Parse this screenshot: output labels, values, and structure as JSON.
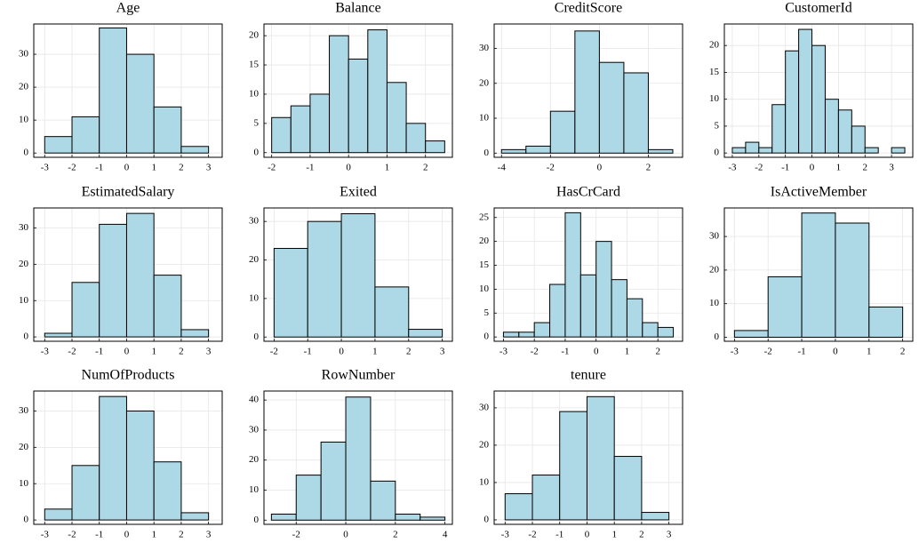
{
  "chart_data": [
    {
      "type": "histogram",
      "title": "Age",
      "bins": [
        -3,
        -2,
        -1,
        0,
        1,
        2,
        3
      ],
      "values": [
        5,
        11,
        38,
        30,
        14,
        2
      ],
      "color": "#add8e6",
      "xlim": [
        -3.4,
        3.5
      ],
      "xticks": [
        -3,
        -2,
        -1,
        0,
        1,
        2,
        3
      ],
      "ylim": [
        -1.3,
        39.2
      ],
      "yticks": [
        0,
        10,
        20,
        30
      ],
      "grid": true
    },
    {
      "type": "histogram",
      "title": "Balance",
      "bins": [
        -2,
        -1.5,
        -1,
        -0.5,
        0,
        0.5,
        1,
        1.5,
        2,
        2.5
      ],
      "values": [
        6,
        8,
        10,
        20,
        16,
        21,
        12,
        5,
        2
      ],
      "color": "#add8e6",
      "xlim": [
        -2.2,
        2.7
      ],
      "xticks": [
        -2,
        -1,
        0,
        1,
        2
      ],
      "ylim": [
        -0.8,
        22
      ],
      "yticks": [
        0,
        5,
        10,
        15,
        20
      ],
      "grid": true
    },
    {
      "type": "histogram",
      "title": "CreditScore",
      "bins": [
        -4,
        -3,
        -2,
        -1,
        0,
        1,
        2,
        3
      ],
      "values": [
        1,
        2,
        12,
        35,
        26,
        23,
        1
      ],
      "color": "#add8e6",
      "xlim": [
        -4.3,
        3.4
      ],
      "xticks": [
        -4,
        -2,
        0,
        2
      ],
      "ylim": [
        -1.2,
        37
      ],
      "yticks": [
        0,
        10,
        20,
        30
      ],
      "grid": true
    },
    {
      "type": "histogram",
      "title": "CustomerId",
      "bins": [
        -3,
        -2.5,
        -2,
        -1.5,
        -1,
        -0.5,
        0,
        0.5,
        1,
        1.5,
        2,
        2.5,
        3,
        3.5
      ],
      "values": [
        1,
        2,
        1,
        9,
        19,
        23,
        20,
        10,
        8,
        5,
        1,
        0,
        1
      ],
      "color": "#add8e6",
      "xlim": [
        -3.3,
        3.8
      ],
      "xticks": [
        -3,
        -2,
        -1,
        0,
        1,
        2,
        3
      ],
      "ylim": [
        -0.8,
        24
      ],
      "yticks": [
        0,
        5,
        10,
        15,
        20
      ],
      "grid": true
    },
    {
      "type": "histogram",
      "title": "EstimatedSalary",
      "bins": [
        -3,
        -2,
        -1,
        0,
        1,
        2,
        3
      ],
      "values": [
        1,
        15,
        31,
        34,
        17,
        2
      ],
      "color": "#add8e6",
      "xlim": [
        -3.4,
        3.5
      ],
      "xticks": [
        -3,
        -2,
        -1,
        0,
        1,
        2,
        3
      ],
      "ylim": [
        -1.2,
        35.5
      ],
      "yticks": [
        0,
        10,
        20,
        30
      ],
      "grid": true
    },
    {
      "type": "histogram",
      "title": "Exited",
      "bins": [
        -2,
        -1,
        0,
        1,
        2,
        3
      ],
      "values": [
        23,
        30,
        32,
        13,
        2
      ],
      "color": "#add8e6",
      "xlim": [
        -2.3,
        3.3
      ],
      "xticks": [
        -2,
        -1,
        0,
        1,
        2,
        3
      ],
      "ylim": [
        -1.1,
        33.5
      ],
      "yticks": [
        0,
        10,
        20,
        30
      ],
      "grid": true
    },
    {
      "type": "histogram",
      "title": "HasCrCard",
      "bins": [
        -3,
        -2.5,
        -2,
        -1.5,
        -1,
        -0.5,
        0,
        0.5,
        1,
        1.5,
        2,
        2.5
      ],
      "values": [
        1,
        1,
        3,
        11,
        26,
        13,
        20,
        12,
        8,
        3,
        2
      ],
      "color": "#add8e6",
      "xlim": [
        -3.3,
        2.8
      ],
      "xticks": [
        -3,
        -2,
        -1,
        0,
        1,
        2
      ],
      "ylim": [
        -0.9,
        27
      ],
      "yticks": [
        0,
        5,
        10,
        15,
        20,
        25
      ],
      "grid": true
    },
    {
      "type": "histogram",
      "title": "IsActiveMember",
      "bins": [
        -3,
        -2,
        -1,
        0,
        1,
        2
      ],
      "values": [
        2,
        18,
        37,
        34,
        9
      ],
      "color": "#add8e6",
      "xlim": [
        -3.3,
        2.3
      ],
      "xticks": [
        -3,
        -2,
        -1,
        0,
        1,
        2
      ],
      "ylim": [
        -1.2,
        38.5
      ],
      "yticks": [
        0,
        10,
        20,
        30
      ],
      "grid": true
    },
    {
      "type": "histogram",
      "title": "NumOfProducts",
      "bins": [
        -3,
        -2,
        -1,
        0,
        1,
        2,
        3
      ],
      "values": [
        3,
        15,
        34,
        30,
        16,
        2
      ],
      "color": "#add8e6",
      "xlim": [
        -3.4,
        3.5
      ],
      "xticks": [
        -3,
        -2,
        -1,
        0,
        1,
        2,
        3
      ],
      "ylim": [
        -1.2,
        35.5
      ],
      "yticks": [
        0,
        10,
        20,
        30
      ],
      "grid": true
    },
    {
      "type": "histogram",
      "title": "RowNumber",
      "bins": [
        -3,
        -2,
        -1,
        0,
        1,
        2,
        3,
        4
      ],
      "values": [
        2,
        15,
        26,
        41,
        13,
        2,
        1
      ],
      "color": "#add8e6",
      "xlim": [
        -3.3,
        4.3
      ],
      "xticks": [
        -2,
        0,
        2,
        4
      ],
      "ylim": [
        -1.4,
        43
      ],
      "yticks": [
        0,
        10,
        20,
        30,
        40
      ],
      "grid": true
    },
    {
      "type": "histogram",
      "title": "tenure",
      "bins": [
        -3,
        -2,
        -1,
        0,
        1,
        2,
        3
      ],
      "values": [
        7,
        12,
        29,
        33,
        17,
        2
      ],
      "color": "#add8e6",
      "xlim": [
        -3.4,
        3.5
      ],
      "xticks": [
        -3,
        -2,
        -1,
        0,
        1,
        2,
        3
      ],
      "ylim": [
        -1.2,
        34.5
      ],
      "yticks": [
        0,
        10,
        20,
        30
      ],
      "grid": true
    }
  ]
}
